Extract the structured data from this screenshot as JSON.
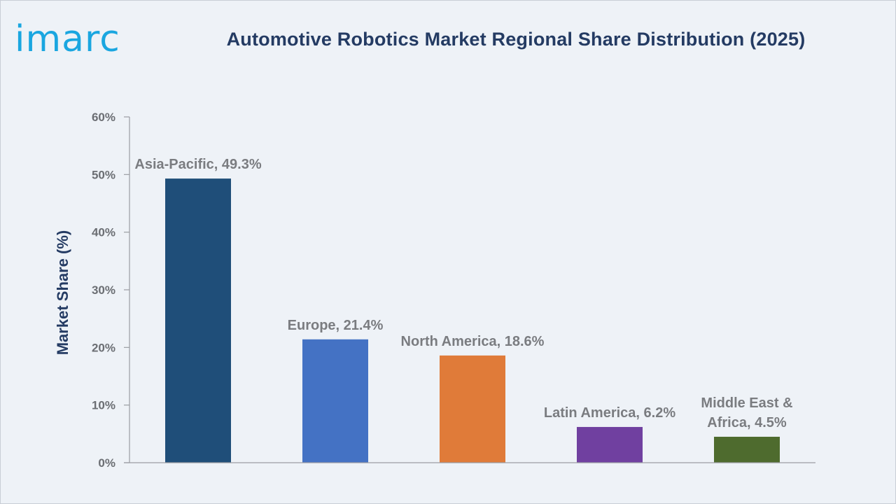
{
  "brand": {
    "logo_text": "imarc",
    "logo_color": "#1aa6e0"
  },
  "chart_data": {
    "type": "bar",
    "title": "Automotive Robotics Market Regional Share Distribution (2025)",
    "xlabel": "",
    "ylabel": "Market Share (%)",
    "ylim": [
      0,
      60
    ],
    "yticks": [
      0,
      10,
      20,
      30,
      40,
      50,
      60
    ],
    "ytick_labels": [
      "0%",
      "10%",
      "20%",
      "30%",
      "40%",
      "50%",
      "60%"
    ],
    "grid": false,
    "legend": "none",
    "categories": [
      "Asia-Pacific",
      "Europe",
      "North America",
      "Latin America",
      "Middle East & Africa"
    ],
    "values": [
      49.3,
      21.4,
      18.6,
      6.2,
      4.5
    ],
    "data_labels": [
      [
        "Asia-Pacific, 49.3%"
      ],
      [
        "Europe, 21.4%"
      ],
      [
        "North America, 18.6%"
      ],
      [
        "Latin America, 6.2%"
      ],
      [
        "Middle East &",
        "Africa, 4.5%"
      ]
    ],
    "colors": [
      "#1f4e79",
      "#4472c4",
      "#e07b39",
      "#7040a0",
      "#4e6b2e"
    ]
  }
}
